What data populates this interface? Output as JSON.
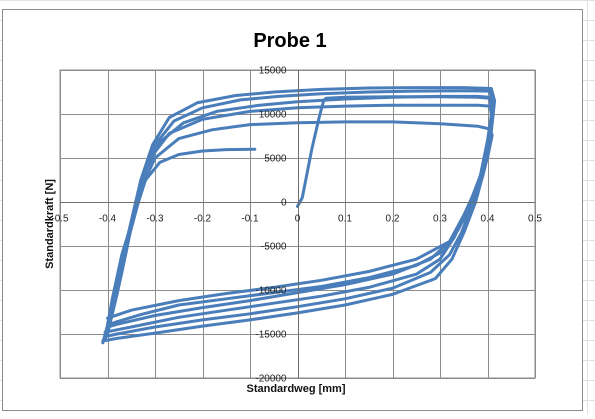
{
  "chart_data": {
    "type": "scatter",
    "title": "Probe 1",
    "xlabel": "Standardweg [mm]",
    "ylabel": "Standardkraft [N]",
    "xlim": [
      -0.5,
      0.5
    ],
    "ylim": [
      -20000,
      15000
    ],
    "x_ticks": [
      -0.5,
      -0.4,
      -0.3,
      -0.2,
      -0.1,
      0,
      0.1,
      0.2,
      0.3,
      0.4,
      0.5
    ],
    "x_tick_labels": [
      "-0.5",
      "-0.4",
      "-0.3",
      "-0.2",
      "-0.1",
      "0",
      "0.1",
      "0.2",
      "0.3",
      "0.4",
      "0.5"
    ],
    "y_ticks": [
      -20000,
      -15000,
      -10000,
      -5000,
      0,
      5000,
      10000,
      15000
    ],
    "y_tick_labels": [
      "-20000",
      "-15000",
      "-10000",
      "-5000",
      "0",
      "5000",
      "10000",
      "15000"
    ],
    "grid": true,
    "legend": "none",
    "series_color": "#4a7ebb",
    "series": [
      {
        "values_note": "",
        "loops": [
          [
            [
              0,
              -500
            ],
            [
              0.01,
              500
            ],
            [
              0.03,
              6000
            ],
            [
              0.045,
              9500
            ],
            [
              0.055,
              11500
            ],
            [
              0.06,
              11800
            ],
            [
              0.1,
              11900
            ],
            [
              0.2,
              11950
            ],
            [
              0.3,
              11950
            ],
            [
              0.38,
              11900
            ],
            [
              0.405,
              11800
            ],
            [
              0.41,
              10000
            ],
            [
              0.4,
              6000
            ],
            [
              0.39,
              3000
            ],
            [
              0.37,
              500
            ],
            [
              0.34,
              -3000
            ],
            [
              0.31,
              -5500
            ],
            [
              0.25,
              -7200
            ],
            [
              0.15,
              -8600
            ],
            [
              0.05,
              -9600
            ],
            [
              -0.05,
              -10300
            ],
            [
              -0.15,
              -11000
            ],
            [
              -0.25,
              -11700
            ],
            [
              -0.33,
              -12800
            ],
            [
              -0.38,
              -13600
            ],
            [
              -0.4,
              -14000
            ],
            [
              -0.39,
              -11000
            ],
            [
              -0.37,
              -6000
            ],
            [
              -0.35,
              -2500
            ],
            [
              -0.335,
              0
            ],
            [
              -0.32,
              2500
            ],
            [
              -0.29,
              4500
            ],
            [
              -0.25,
              5400
            ],
            [
              -0.2,
              5800
            ],
            [
              -0.15,
              5950
            ],
            [
              -0.09,
              6000
            ]
          ],
          [
            [
              -0.4,
              -14500
            ],
            [
              -0.38,
              -10000
            ],
            [
              -0.36,
              -5000
            ],
            [
              -0.345,
              -1500
            ],
            [
              -0.33,
              1500
            ],
            [
              -0.3,
              5000
            ],
            [
              -0.25,
              7200
            ],
            [
              -0.18,
              8200
            ],
            [
              -0.1,
              8800
            ],
            [
              0,
              9000
            ],
            [
              0.1,
              9100
            ],
            [
              0.2,
              9100
            ],
            [
              0.3,
              8900
            ],
            [
              0.38,
              8600
            ],
            [
              0.405,
              8300
            ],
            [
              0.41,
              7600
            ],
            [
              0.4,
              5000
            ],
            [
              0.38,
              1500
            ],
            [
              0.35,
              -2000
            ],
            [
              0.32,
              -4500
            ],
            [
              0.25,
              -6500
            ],
            [
              0.15,
              -7900
            ],
            [
              0.05,
              -8900
            ],
            [
              -0.05,
              -9700
            ],
            [
              -0.15,
              -10400
            ],
            [
              -0.25,
              -11200
            ],
            [
              -0.35,
              -12300
            ],
            [
              -0.4,
              -13200
            ]
          ],
          [
            [
              -0.4,
              -15000
            ],
            [
              -0.38,
              -10500
            ],
            [
              -0.36,
              -5500
            ],
            [
              -0.345,
              -1500
            ],
            [
              -0.33,
              2000
            ],
            [
              -0.31,
              5000
            ],
            [
              -0.27,
              7800
            ],
            [
              -0.2,
              9400
            ],
            [
              -0.1,
              10300
            ],
            [
              0,
              10700
            ],
            [
              0.1,
              10900
            ],
            [
              0.2,
              11000
            ],
            [
              0.3,
              11000
            ],
            [
              0.38,
              11000
            ],
            [
              0.405,
              10900
            ],
            [
              0.41,
              9500
            ],
            [
              0.4,
              6000
            ],
            [
              0.38,
              2000
            ],
            [
              0.35,
              -1500
            ],
            [
              0.32,
              -4500
            ],
            [
              0.28,
              -6500
            ],
            [
              0.2,
              -8200
            ],
            [
              0.1,
              -9400
            ],
            [
              0,
              -10300
            ],
            [
              -0.1,
              -11200
            ],
            [
              -0.2,
              -12000
            ],
            [
              -0.3,
              -12900
            ],
            [
              -0.38,
              -13900
            ],
            [
              -0.4,
              -14200
            ]
          ],
          [
            [
              -0.405,
              -15300
            ],
            [
              -0.39,
              -12000
            ],
            [
              -0.37,
              -7000
            ],
            [
              -0.35,
              -3000
            ],
            [
              -0.335,
              0
            ],
            [
              -0.32,
              3500
            ],
            [
              -0.29,
              6800
            ],
            [
              -0.24,
              9000
            ],
            [
              -0.17,
              10300
            ],
            [
              -0.08,
              11000
            ],
            [
              0,
              11400
            ],
            [
              0.1,
              11700
            ],
            [
              0.2,
              11900
            ],
            [
              0.3,
              12000
            ],
            [
              0.38,
              12000
            ],
            [
              0.405,
              11900
            ],
            [
              0.41,
              10500
            ],
            [
              0.4,
              7000
            ],
            [
              0.385,
              3000
            ],
            [
              0.36,
              -500
            ],
            [
              0.33,
              -4000
            ],
            [
              0.3,
              -6500
            ],
            [
              0.25,
              -8200
            ],
            [
              0.15,
              -9700
            ],
            [
              0.05,
              -10700
            ],
            [
              -0.05,
              -11500
            ],
            [
              -0.15,
              -12300
            ],
            [
              -0.25,
              -13100
            ],
            [
              -0.35,
              -14200
            ],
            [
              -0.405,
              -14800
            ]
          ],
          [
            [
              -0.405,
              -15600
            ],
            [
              -0.39,
              -12500
            ],
            [
              -0.37,
              -8000
            ],
            [
              -0.355,
              -4000
            ],
            [
              -0.34,
              -500
            ],
            [
              -0.325,
              3000
            ],
            [
              -0.3,
              6500
            ],
            [
              -0.26,
              9200
            ],
            [
              -0.2,
              10700
            ],
            [
              -0.12,
              11600
            ],
            [
              -0.04,
              12000
            ],
            [
              0.05,
              12300
            ],
            [
              0.15,
              12500
            ],
            [
              0.25,
              12600
            ],
            [
              0.35,
              12650
            ],
            [
              0.405,
              12600
            ],
            [
              0.412,
              11000
            ],
            [
              0.405,
              7500
            ],
            [
              0.39,
              3500
            ],
            [
              0.37,
              0
            ],
            [
              0.345,
              -3500
            ],
            [
              0.32,
              -6000
            ],
            [
              0.28,
              -8000
            ],
            [
              0.2,
              -9800
            ],
            [
              0.1,
              -11000
            ],
            [
              0,
              -11900
            ],
            [
              -0.1,
              -12700
            ],
            [
              -0.2,
              -13400
            ],
            [
              -0.3,
              -14200
            ],
            [
              -0.38,
              -15000
            ],
            [
              -0.405,
              -15300
            ]
          ],
          [
            [
              -0.41,
              -16000
            ],
            [
              -0.395,
              -13000
            ],
            [
              -0.375,
              -8500
            ],
            [
              -0.36,
              -4500
            ],
            [
              -0.345,
              -1000
            ],
            [
              -0.33,
              2500
            ],
            [
              -0.305,
              6500
            ],
            [
              -0.27,
              9600
            ],
            [
              -0.21,
              11300
            ],
            [
              -0.13,
              12100
            ],
            [
              -0.05,
              12500
            ],
            [
              0.05,
              12800
            ],
            [
              0.15,
              12950
            ],
            [
              0.25,
              13000
            ],
            [
              0.35,
              13000
            ],
            [
              0.408,
              12900
            ],
            [
              0.415,
              11500
            ],
            [
              0.408,
              8000
            ],
            [
              0.395,
              4000
            ],
            [
              0.375,
              0
            ],
            [
              0.35,
              -3500
            ],
            [
              0.325,
              -6500
            ],
            [
              0.29,
              -8700
            ],
            [
              0.2,
              -10500
            ],
            [
              0.1,
              -11700
            ],
            [
              0,
              -12600
            ],
            [
              -0.1,
              -13400
            ],
            [
              -0.2,
              -14100
            ],
            [
              -0.3,
              -14900
            ],
            [
              -0.38,
              -15500
            ],
            [
              -0.41,
              -15800
            ]
          ]
        ]
      }
    ]
  }
}
